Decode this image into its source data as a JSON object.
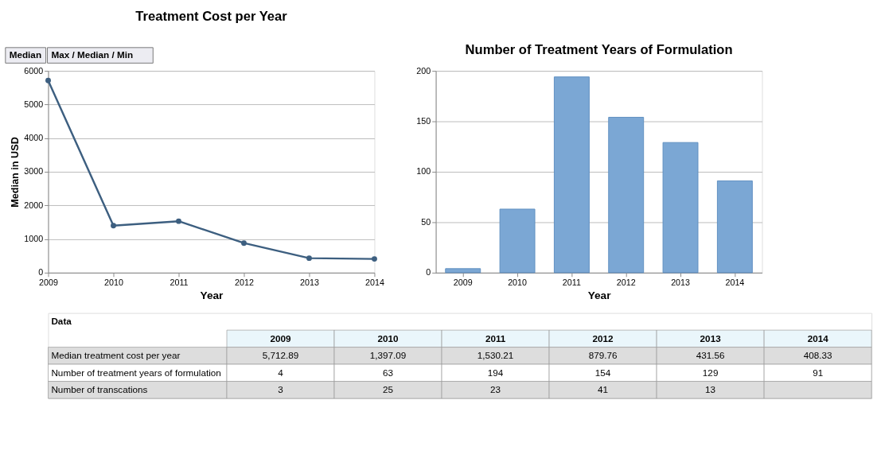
{
  "chart_data": [
    {
      "type": "line",
      "title": "Treatment Cost per Year",
      "xlabel": "Year",
      "ylabel": "Median in USD",
      "x": [
        2009,
        2010,
        2011,
        2012,
        2013,
        2014
      ],
      "xlim": [
        2009,
        2014
      ],
      "xticks": [
        2009,
        2010,
        2011,
        2012,
        2013,
        2014
      ],
      "ylim": [
        0,
        6000
      ],
      "yticks": [
        0,
        1000,
        2000,
        3000,
        4000,
        5000,
        6000
      ],
      "grid": "y",
      "marker": "circle",
      "line_style": "solid",
      "series": [
        {
          "color": "#3d5f80",
          "values": [
            5712.89,
            1397.09,
            1530.21,
            879.76,
            431.56,
            408.33
          ]
        }
      ],
      "annotations": [
        "Median",
        "Max / Median / Min"
      ]
    },
    {
      "type": "bar",
      "title": "Number of Treatment Years of Formulation",
      "xlabel": "Year",
      "categories": [
        "2009",
        "2010",
        "2011",
        "2012",
        "2013",
        "2014"
      ],
      "ylim": [
        0,
        200
      ],
      "yticks": [
        0,
        50,
        100,
        150,
        200
      ],
      "grid": "y",
      "series": [
        {
          "color": "#7ba7d4",
          "values": [
            4,
            63,
            194,
            154,
            129,
            91
          ]
        }
      ]
    },
    {
      "type": "heatmap",
      "title": "Data",
      "categories": [
        "2009",
        "2010",
        "2011",
        "2012",
        "2013",
        "2014"
      ],
      "y_categories": [
        "Median treatment cost per year",
        "Number of treatment years of formulation",
        "Number of transcations"
      ],
      "cells": [
        [
          5712.89,
          1397.09,
          1530.21,
          879.76,
          431.56,
          408.33
        ],
        [
          4,
          63,
          194,
          154,
          129,
          91
        ],
        [
          3,
          25,
          23,
          41,
          13,
          null
        ]
      ],
      "cell_labels": [
        [
          "5,712.89",
          "1,397.09",
          "1,530.21",
          "879.76",
          "431.56",
          "408.33"
        ],
        [
          "4",
          "63",
          "194",
          "154",
          "129",
          "91"
        ],
        [
          "3",
          "25",
          "23",
          "41",
          "13",
          null
        ]
      ]
    }
  ]
}
